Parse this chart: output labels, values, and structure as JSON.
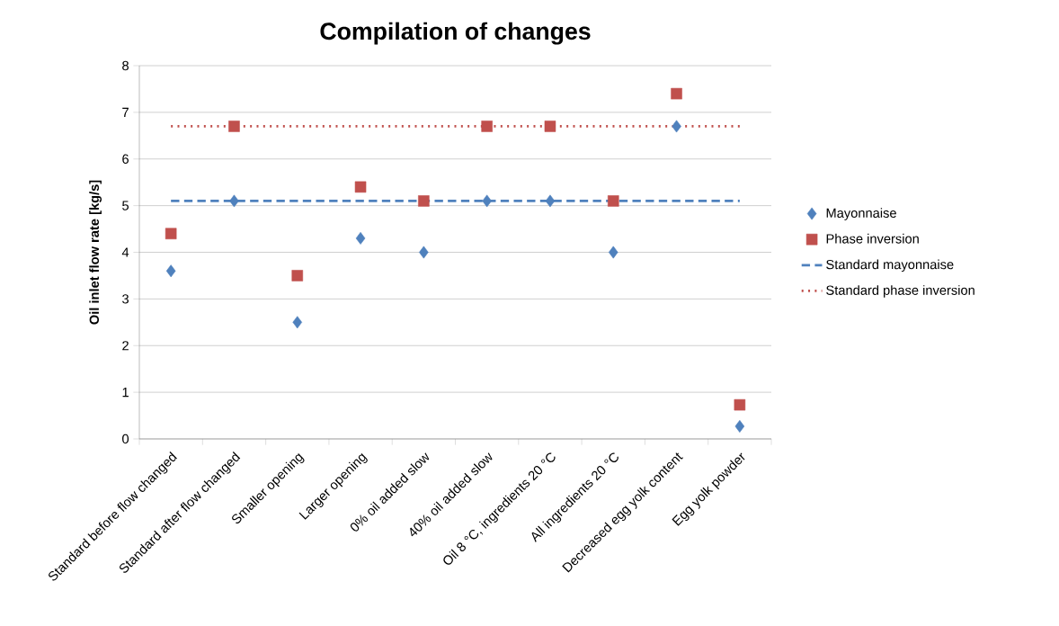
{
  "chart_data": {
    "type": "scatter",
    "title": "Compilation of changes",
    "ylabel": "Oil inlet flow rate [kg/s]",
    "categories": [
      "Standard before flow changed",
      "Standard after flow changed",
      "Smaller opening",
      "Larger opening",
      "0% oil added slow",
      "40% oil added slow",
      "Oil 8 °C, ingredients 20 °C",
      "All ingredients 20 °C",
      "Decreased egg yolk content",
      "Egg yolk powder"
    ],
    "series": [
      {
        "name": "Mayonnaise",
        "marker": "diamond",
        "color": "#4f81bd",
        "values": [
          3.6,
          5.1,
          2.5,
          4.3,
          4.0,
          5.1,
          5.1,
          4.0,
          6.7,
          0.27
        ]
      },
      {
        "name": "Phase inversion",
        "marker": "square",
        "color": "#c0504d",
        "values": [
          4.4,
          6.7,
          3.5,
          5.4,
          5.1,
          6.7,
          6.7,
          5.1,
          7.4,
          0.73
        ]
      },
      {
        "name": "Standard mayonnaise",
        "type": "line",
        "marker": "none",
        "line_style": "dashed",
        "color": "#4f81bd",
        "values": [
          5.1,
          5.1,
          5.1,
          5.1,
          5.1,
          5.1,
          5.1,
          5.1,
          5.1,
          5.1
        ]
      },
      {
        "name": "Standard phase inversion",
        "type": "line",
        "marker": "none",
        "line_style": "dotted",
        "color": "#c0504d",
        "values": [
          6.7,
          6.7,
          6.7,
          6.7,
          6.7,
          6.7,
          6.7,
          6.7,
          6.7,
          6.7
        ]
      }
    ],
    "ylim": [
      0,
      8
    ],
    "yticks": [
      0,
      1,
      2,
      3,
      4,
      5,
      6,
      7,
      8
    ],
    "grid": "y",
    "legend": "right"
  }
}
